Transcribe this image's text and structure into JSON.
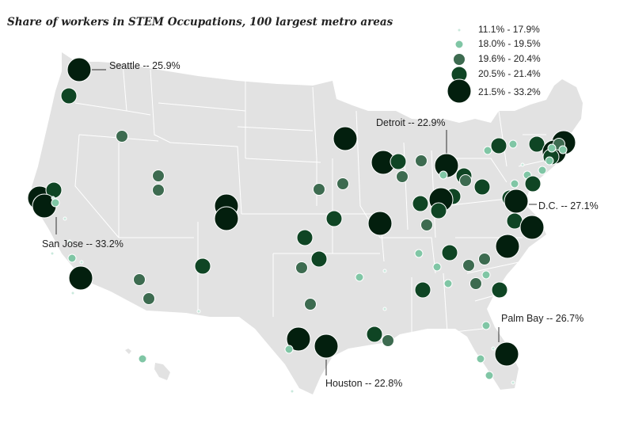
{
  "title": "Share of workers in STEM Occupations, 100 largest metro areas",
  "legend": [
    {
      "label": "11.1% - 17.9%",
      "color": "#c9e9dc"
    },
    {
      "label": "18.0% - 19.5%",
      "color": "#80c6a5"
    },
    {
      "label": "19.6% - 20.4%",
      "color": "#3d6b50"
    },
    {
      "label": "20.5% - 21.4%",
      "color": "#0f4524"
    },
    {
      "label": "21.5% - 33.2%",
      "color": "#031f0e"
    }
  ],
  "callouts": {
    "seattle": "Seattle -- 25.9%",
    "detroit": "Detroit -- 22.9%",
    "dc": "D.C. -- 27.1%",
    "sanjose": "San Jose -- 33.2%",
    "palmbay": "Palm Bay -- 26.7%",
    "houston": "Houston -- 22.8%"
  },
  "colors": {
    "land": "#e2e2e2",
    "border": "#ffffff",
    "leader": "#333333"
  }
}
